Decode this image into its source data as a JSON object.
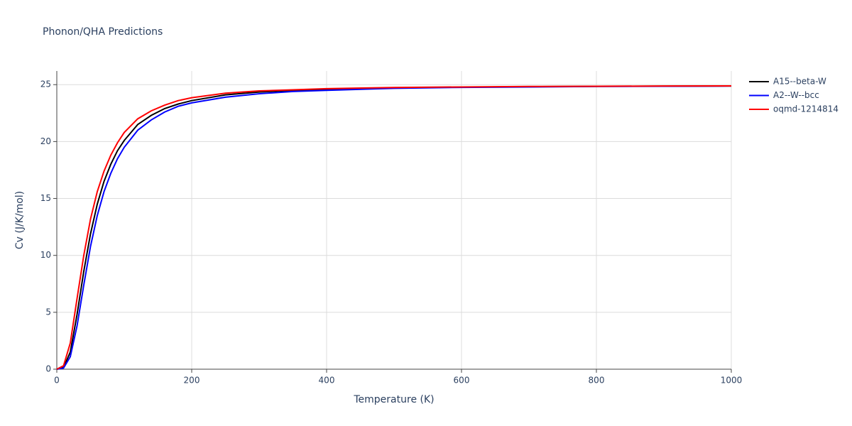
{
  "chart_data": {
    "type": "line",
    "title": "Phonon/QHA Predictions",
    "x_label": "Temperature (K)",
    "y_label": "Cv (J/K/mol)",
    "x": [
      0,
      10,
      20,
      30,
      40,
      50,
      60,
      70,
      80,
      90,
      100,
      120,
      140,
      160,
      180,
      200,
      250,
      300,
      350,
      400,
      500,
      600,
      700,
      800,
      900,
      1000
    ],
    "series": [
      {
        "name": "A15--beta-W",
        "color": "#000000",
        "values": [
          0,
          0.15,
          1.5,
          4.8,
          8.6,
          11.9,
          14.5,
          16.5,
          18.0,
          19.2,
          20.1,
          21.5,
          22.3,
          22.9,
          23.3,
          23.6,
          24.1,
          24.35,
          24.5,
          24.6,
          24.72,
          24.78,
          24.82,
          24.85,
          24.87,
          24.88
        ]
      },
      {
        "name": "A2--W--bcc",
        "color": "#0000ff",
        "values": [
          0,
          0.1,
          1.1,
          3.8,
          7.4,
          10.8,
          13.5,
          15.6,
          17.2,
          18.5,
          19.5,
          21.0,
          21.9,
          22.6,
          23.1,
          23.4,
          23.9,
          24.2,
          24.4,
          24.5,
          24.68,
          24.76,
          24.8,
          24.84,
          24.86,
          24.88
        ]
      },
      {
        "name": "oqmd-1214814",
        "color": "#ff0000",
        "values": [
          0,
          0.3,
          2.3,
          6.2,
          10.0,
          13.2,
          15.6,
          17.4,
          18.8,
          19.9,
          20.8,
          22.0,
          22.7,
          23.2,
          23.6,
          23.85,
          24.25,
          24.45,
          24.55,
          24.65,
          24.75,
          24.8,
          24.84,
          24.86,
          24.88,
          24.89
        ]
      }
    ],
    "xlim": [
      0,
      1000
    ],
    "xticks": [
      0,
      200,
      400,
      600,
      800,
      1000
    ],
    "ylim": [
      0,
      26.2
    ],
    "yticks": [
      0,
      5,
      10,
      15,
      20,
      25
    ],
    "grid": true,
    "legend": "right"
  }
}
